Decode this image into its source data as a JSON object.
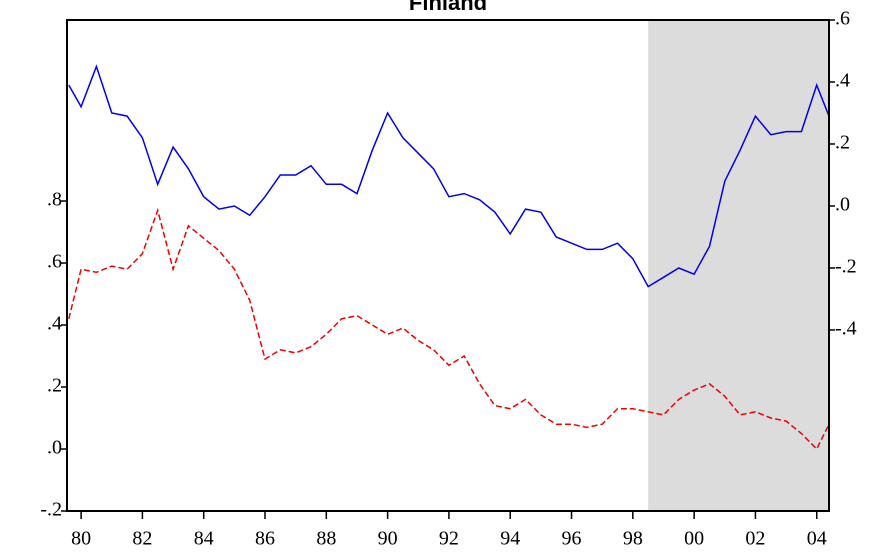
{
  "chart_data": {
    "type": "line",
    "title": "Finland",
    "x": [
      1979.6,
      1980,
      1980.5,
      1981,
      1981.5,
      1982,
      1982.5,
      1983,
      1983.5,
      1984,
      1984.5,
      1985,
      1985.5,
      1986,
      1986.5,
      1987,
      1987.5,
      1988,
      1988.5,
      1989,
      1989.5,
      1990,
      1990.5,
      1991,
      1991.5,
      1992,
      1992.5,
      1993,
      1993.5,
      1994,
      1994.5,
      1995,
      1995.5,
      1996,
      1996.5,
      1997,
      1997.5,
      1998,
      1998.5,
      1999,
      1999.5,
      2000,
      2000.5,
      2001,
      2001.5,
      2002,
      2002.5,
      2003,
      2003.5,
      2004,
      2004.4
    ],
    "series": [
      {
        "color": "#0000ee",
        "axis": "y2",
        "dash": false,
        "values": [
          0.39,
          0.32,
          0.45,
          0.3,
          0.29,
          0.22,
          0.07,
          0.19,
          0.12,
          0.03,
          -0.01,
          0.0,
          -0.03,
          0.03,
          0.1,
          0.1,
          0.13,
          0.07,
          0.07,
          0.04,
          0.18,
          0.3,
          0.22,
          0.17,
          0.12,
          0.03,
          0.04,
          0.02,
          -0.02,
          -0.09,
          -0.01,
          -0.02,
          -0.1,
          -0.12,
          -0.14,
          -0.14,
          -0.12,
          -0.17,
          -0.26,
          -0.23,
          -0.2,
          -0.22,
          -0.13,
          0.08,
          0.18,
          0.29,
          0.23,
          0.24,
          0.24,
          0.39,
          0.29
        ]
      },
      {
        "color": "#ee0000",
        "axis": "y",
        "dash": true,
        "values": [
          0.42,
          0.58,
          0.57,
          0.59,
          0.58,
          0.63,
          0.77,
          0.58,
          0.72,
          0.68,
          0.64,
          0.58,
          0.48,
          0.29,
          0.32,
          0.31,
          0.33,
          0.37,
          0.42,
          0.43,
          0.4,
          0.37,
          0.39,
          0.35,
          0.32,
          0.27,
          0.3,
          0.21,
          0.14,
          0.13,
          0.16,
          0.11,
          0.08,
          0.08,
          0.07,
          0.08,
          0.13,
          0.13,
          0.12,
          0.11,
          0.16,
          0.19,
          0.21,
          0.17,
          0.11,
          0.12,
          0.1,
          0.09,
          0.05,
          0.0,
          0.08
        ]
      }
    ],
    "shaded_region": [
      1998.5,
      2004.4
    ],
    "shade_color": "#dcdcdc",
    "xlim": [
      1979.54,
      2004.4
    ],
    "xticks": [
      {
        "value": 1980,
        "label": "80"
      },
      {
        "value": 1982,
        "label": "82"
      },
      {
        "value": 1984,
        "label": "84"
      },
      {
        "value": 1986,
        "label": "86"
      },
      {
        "value": 1988,
        "label": "88"
      },
      {
        "value": 1990,
        "label": "90"
      },
      {
        "value": 1992,
        "label": "92"
      },
      {
        "value": 1994,
        "label": "94"
      },
      {
        "value": 1996,
        "label": "96"
      },
      {
        "value": 1998,
        "label": "98"
      },
      {
        "value": 2000,
        "label": "00"
      },
      {
        "value": 2002,
        "label": "02"
      },
      {
        "value": 2004,
        "label": "04"
      }
    ],
    "ylim": [
      -0.2,
      1.384
    ],
    "yticks": [
      {
        "value": -0.2,
        "label": "-.2"
      },
      {
        "value": 0,
        "label": ".0"
      },
      {
        "value": 0.2,
        "label": ".2"
      },
      {
        "value": 0.4,
        "label": ".4"
      },
      {
        "value": 0.6,
        "label": ".6"
      },
      {
        "value": 0.8,
        "label": ".8"
      }
    ],
    "y2lim": [
      -0.984,
      0.6
    ],
    "y2ticks": [
      {
        "value": -0.4,
        "label": "-.4"
      },
      {
        "value": -0.2,
        "label": "-.2"
      },
      {
        "value": 0,
        "label": ".0"
      },
      {
        "value": 0.2,
        "label": ".2"
      },
      {
        "value": 0.4,
        "label": ".4"
      },
      {
        "value": 0.6,
        "label": ".6"
      }
    ]
  }
}
